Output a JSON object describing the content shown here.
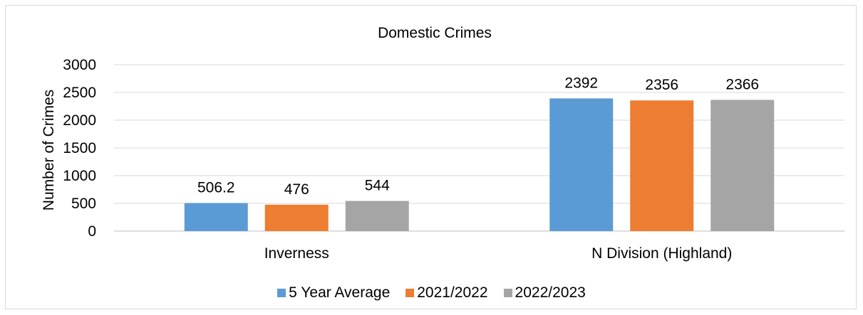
{
  "chart_data": {
    "type": "bar",
    "title": "Domestic Crimes",
    "xlabel": "",
    "ylabel": "Number of Crimes",
    "categories": [
      "Inverness",
      "N Division (Highland)"
    ],
    "series": [
      {
        "name": "5 Year Average",
        "values": [
          506.2,
          2392
        ],
        "labels": [
          "506.2",
          "2392"
        ],
        "color": "#5b9bd5"
      },
      {
        "name": "2021/2022",
        "values": [
          476,
          2356
        ],
        "labels": [
          "476",
          "2356"
        ],
        "color": "#ed7d31"
      },
      {
        "name": "2022/2023",
        "values": [
          544,
          2366
        ],
        "labels": [
          "544",
          "2366"
        ],
        "color": "#a5a5a5"
      }
    ],
    "ylim": [
      0,
      3000
    ],
    "yticks": [
      "0",
      "500",
      "1000",
      "1500",
      "2000",
      "2500",
      "3000"
    ],
    "grid": true,
    "legend_position": "bottom"
  }
}
